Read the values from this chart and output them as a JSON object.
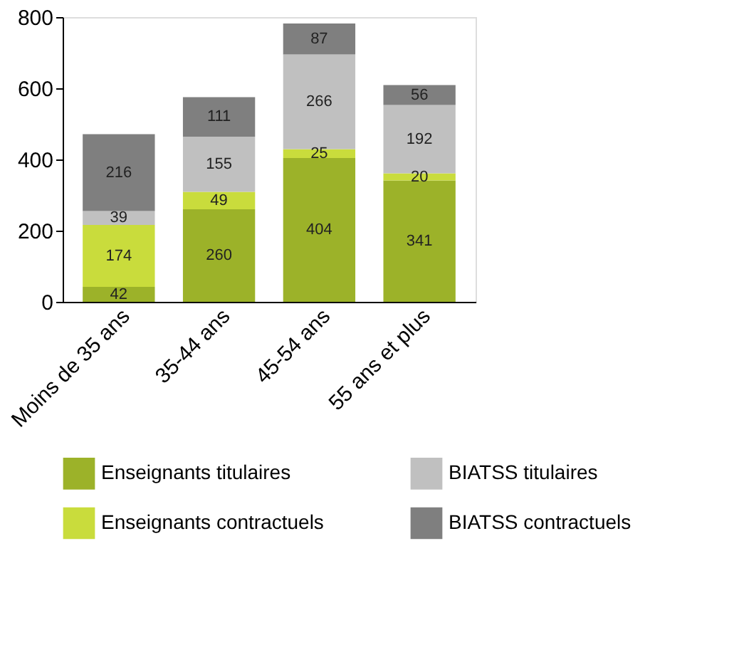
{
  "chart_data": {
    "type": "bar",
    "stacked": true,
    "categories": [
      "Moins de 35 ans",
      "35-44 ans",
      "45-54 ans",
      "55 ans et plus"
    ],
    "series": [
      {
        "name": "Enseignants titulaires",
        "color": "#9cb229",
        "values": [
          42,
          260,
          404,
          341
        ]
      },
      {
        "name": "Enseignants contractuels",
        "color": "#c9dc3c",
        "values": [
          174,
          49,
          25,
          20
        ]
      },
      {
        "name": "BIATSS titulaires",
        "color": "#c0c0c0",
        "values": [
          39,
          155,
          266,
          192
        ]
      },
      {
        "name": "BIATSS contractuels",
        "color": "#7f7f7f",
        "values": [
          216,
          111,
          87,
          56
        ]
      }
    ],
    "ylim": [
      0,
      800
    ],
    "yticks": [
      0,
      200,
      400,
      600,
      800
    ],
    "grid": false,
    "legend": "bottom",
    "data_labels": true
  }
}
